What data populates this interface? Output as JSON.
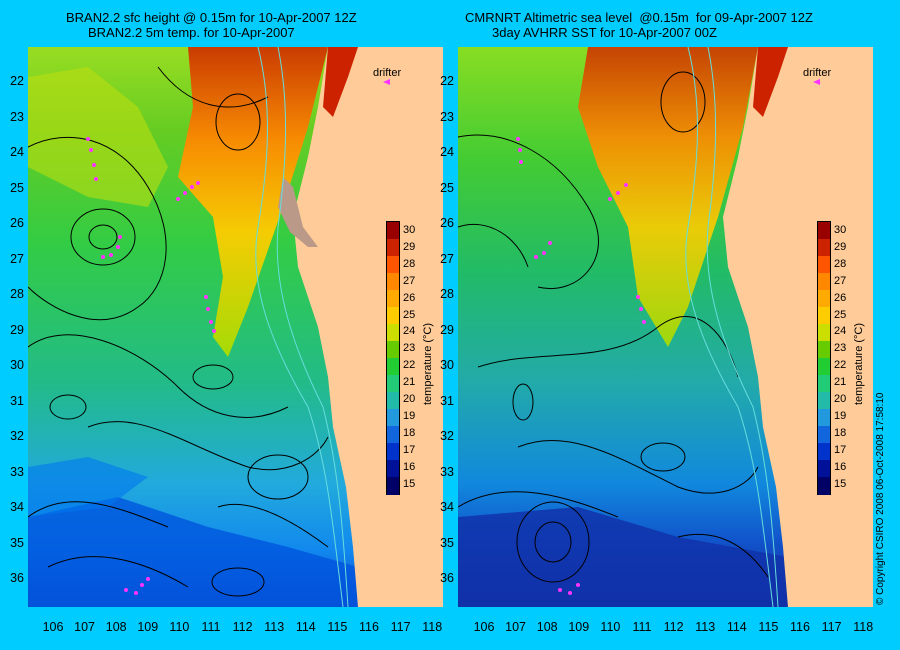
{
  "left_panel": {
    "title_line1": "BRAN2.2 sfc height @ 0.15m for 10-Apr-2007 12Z",
    "title_line2": "BRAN2.2 5m temp. for 10-Apr-2007",
    "drifter_label": "drifter"
  },
  "right_panel": {
    "title_line1": "CMRNRT Altimetric sea level  @0.15m  for 09-Apr-2007 12Z",
    "title_line2": "3day AVHRR SST for 10-Apr-2007 00Z",
    "drifter_label": "drifter"
  },
  "axes": {
    "lat_labels": [
      "22",
      "23",
      "24",
      "25",
      "26",
      "27",
      "28",
      "29",
      "30",
      "31",
      "32",
      "33",
      "34",
      "35",
      "36"
    ],
    "lon_labels": [
      "106",
      "107",
      "108",
      "109",
      "110",
      "111",
      "112",
      "113",
      "114",
      "115",
      "116",
      "117",
      "118"
    ]
  },
  "colorbar": {
    "title": "temperature (°C)",
    "ticks": [
      "30",
      "29",
      "28",
      "27",
      "26",
      "25",
      "24",
      "23",
      "22",
      "21",
      "20",
      "19",
      "18",
      "17",
      "16",
      "15"
    ],
    "colors": [
      "#990000",
      "#cc2200",
      "#ff5500",
      "#ff8800",
      "#ffaa00",
      "#ffcc00",
      "#ccdd00",
      "#66cc00",
      "#22cc33",
      "#22cc77",
      "#22bbaa",
      "#2299dd",
      "#1166dd",
      "#0033cc",
      "#001199",
      "#000066"
    ]
  },
  "copyright": "© Copyright CSIRO 2008   06-Oct-2008 17:58:10",
  "colors": {
    "background": "#00ccff",
    "land": "#ffcc99",
    "contour": "#000000",
    "isobath": "#66dddd",
    "drifter": "#ff33ff"
  }
}
